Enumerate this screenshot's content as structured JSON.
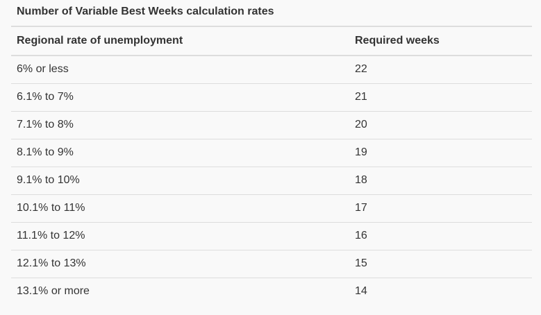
{
  "table": {
    "caption": "Number of Variable Best Weeks calculation rates",
    "headers": [
      "Regional rate of unemployment",
      "Required weeks"
    ],
    "rows": [
      [
        "6% or less",
        "22"
      ],
      [
        "6.1% to 7%",
        "21"
      ],
      [
        "7.1% to 8%",
        "20"
      ],
      [
        "8.1% to 9%",
        "19"
      ],
      [
        "9.1% to 10%",
        "18"
      ],
      [
        "10.1% to 11%",
        "17"
      ],
      [
        "11.1% to 12%",
        "16"
      ],
      [
        "12.1% to 13%",
        "15"
      ],
      [
        "13.1% or more",
        "14"
      ]
    ]
  }
}
